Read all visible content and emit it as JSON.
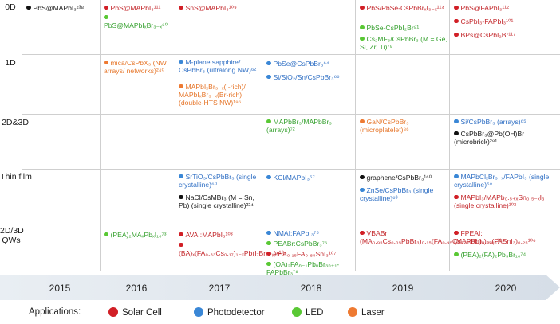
{
  "rows": [
    {
      "label": "0D"
    },
    {
      "label": "1D"
    },
    {
      "label": "2D&3D"
    },
    {
      "label": "Thin film"
    },
    {
      "label": "2D/3D\nQWs"
    }
  ],
  "years": [
    "2015",
    "2016",
    "2017",
    "2018",
    "2019",
    "2020"
  ],
  "legend": {
    "title": "Applications:",
    "items": [
      {
        "label": "Solar Cell",
        "color": "#d11f26"
      },
      {
        "label": "Photodetector",
        "color": "#3a87d6"
      },
      {
        "label": "LED",
        "color": "#59c834"
      },
      {
        "label": "Laser",
        "color": "#ee7a32"
      }
    ]
  },
  "entries": {
    "e1": "PbS@MAPbI₃²³⁸",
    "e2": "PbS@MAPbI₃¹¹¹",
    "e3": "PbS@MAPbIₓBr₃₋ₓ⁸⁰",
    "e4": "SnS@MAPbI₃¹⁰⁹",
    "e5": "PbS/PbSe-CsPbBrₓI₃₋ₓ¹¹⁴",
    "e6": "PbSe-CsPbI₂Br⁸¹",
    "e7": "Cs₂MF₆/CsPbBr₃ (M = Ge, Si, Zr, Ti)⁷⁹",
    "e8": "PbS@FAPbI₃¹¹²",
    "e9": "CsPbI₃-FAPbI₃¹⁰¹",
    "e10": "BPs@CsPbI₂Br¹¹⁷",
    "e11": "mica/CsPbX₃ (NW arrays/ networks)²⁴⁰",
    "e12": "M-plane sapphire/ CsPbBr₃ (ultralong NW)⁶²",
    "e13": "MAPbIₓBr₃₋ₓ(I-rich)/ MAPbIₓBr₃₋ₓ(Br-rich) (double-HTS NW)¹⁹⁶",
    "e14": "PbSe@CsPbBr₃⁶⁴",
    "e15": "Si/SiO₂/Sn/CsPbBr₃⁶⁶",
    "e16": "MAPbBr₃/MAPbBr₃ (arrays)⁷²",
    "e17": "GaN/CsPbBr₃ (microplatelet)⁸⁶",
    "e18": "Si/CsPbBr₃ (arrays)⁶⁵",
    "e19": "CsPbBr₃@Pb(OH)Br (microbrick)²⁸¹",
    "e20": "SrTiO₃/CsPbBr₃ (single crystalline)⁶⁰",
    "e21": "NaCl/CsMBr₃ (M = Sn, Pb) (single crystalline)²²⁴",
    "e22": "KCl/MAPbI₃⁵⁷",
    "e23": "graphene/CsPbBr₃¹⁶⁰",
    "e24": "ZnSe/CsPbBr₃ (single crystalline)⁶³",
    "e25": "MAPbClₓBr₃₋ₓ/FAPbI₃ (single crystalline)⁵⁸",
    "e26": "MAPbI₃/MAPb₀.₅₊ₓSn₀.₅₋ₓI₃ (single crystalline)¹⁰²",
    "e27": "(PEA)₂MAₓPbₓI₁₆⁷³",
    "e28": "AVAI:MAPbI₃¹⁰³",
    "e29": "(BA)ₓ(FA₀.₈₃Cs₀.₁₇)₁₋ₓPb(I₇Br₁₋ᵧ)₃¹⁰⁴",
    "e30": "NMAI:FAPbI₃⁷⁵",
    "e31": "PEABr:CsPbBr₃⁷⁶",
    "e32": "PEA₀.₁₅FA₀.₈₅SnI₃¹⁰⁷",
    "e33": "(OA)₂FAₙ₋₁PbₙBr₃ₙ₊₁-FAPbBr₃⁷⁸",
    "e34": "VBABr:(MA₀.₉₅Cs₀.₀₅PbBr₃)₀.₁₅(FA₀.₉₅Cs₀.₀₅PbI₃)₀.₈₅¹⁰⁵",
    "e35": "FPEAI:(MAPbI₃)₀.₇₅(FASnI₃)₀.₂₅¹⁰⁶",
    "e36": "(PEA)₂(FA)₂Pb₃Br₁₀⁷⁴"
  }
}
